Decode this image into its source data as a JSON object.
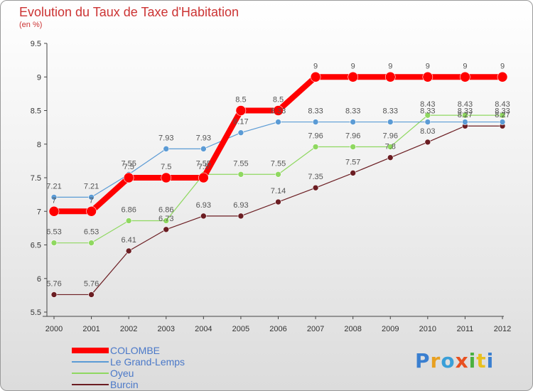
{
  "header": {
    "title": "Evolution du Taux de Taxe d'Habitation",
    "subtitle": "(en %)"
  },
  "logo": {
    "letters": [
      "P",
      "r",
      "o",
      "x",
      "i",
      "t",
      "i"
    ],
    "colors": [
      "#3a7fd0",
      "#e8a020",
      "#3a9fd8",
      "#e85020",
      "#4ab040",
      "#e8c020",
      "#3a7fd0"
    ]
  },
  "chart_data": {
    "type": "line",
    "x": [
      "2000",
      "2001",
      "2002",
      "2003",
      "2004",
      "2005",
      "2006",
      "2007",
      "2008",
      "2009",
      "2010",
      "2011",
      "2012"
    ],
    "ylim": [
      5.5,
      9.5
    ],
    "yticks": [
      "5.5",
      "6",
      "6.5",
      "7",
      "7.5",
      "8",
      "8.5",
      "9",
      "9.5"
    ],
    "grid": false,
    "legend_position": "bottom-left",
    "series": [
      {
        "name": "Burcin",
        "color": "#6b1d22",
        "width": 1.2,
        "marker": 4,
        "values": [
          5.76,
          5.76,
          6.41,
          6.73,
          6.93,
          6.93,
          7.14,
          7.35,
          7.57,
          7.8,
          8.03,
          8.27,
          8.27
        ],
        "labels": [
          "5.76",
          "5.76",
          "6.41",
          "6.73",
          "6.93",
          "6.93",
          "7.14",
          "7.35",
          "7.57",
          "7.8",
          "8.03",
          "8.27",
          "8.27"
        ]
      },
      {
        "name": "Oyeu",
        "color": "#8fd860",
        "width": 1.2,
        "marker": 4,
        "values": [
          6.53,
          6.53,
          6.86,
          6.86,
          7.55,
          7.55,
          7.55,
          7.96,
          7.96,
          7.96,
          8.43,
          8.43,
          8.43
        ],
        "labels": [
          "6.53",
          "6.53",
          "6.86",
          "6.86",
          "7.55",
          "7.55",
          "7.55",
          "7.96",
          "7.96",
          "7.96",
          "8.43",
          "8.43",
          "8.43"
        ]
      },
      {
        "name": "Le Grand-Lemps",
        "color": "#5b9bd5",
        "width": 1.2,
        "marker": 4,
        "values": [
          7.21,
          7.21,
          7.55,
          7.93,
          7.93,
          8.17,
          8.33,
          8.33,
          8.33,
          8.33,
          8.33,
          8.33,
          8.33
        ],
        "labels": [
          "7.21",
          "7.21",
          "7.55",
          "7.93",
          "7.93",
          "8.17",
          "8.33",
          "8.33",
          "8.33",
          "8.33",
          "8.33",
          "8.33",
          "8.33"
        ]
      },
      {
        "name": "COLOMBE",
        "color": "#ff0000",
        "width": 8,
        "marker": 7,
        "values": [
          7,
          7,
          7.5,
          7.5,
          7.5,
          8.5,
          8.5,
          9,
          9,
          9,
          9,
          9,
          9
        ],
        "labels": [
          "7",
          "7",
          "7.5",
          "7.5",
          "7.5",
          "8.5",
          "8.5",
          "9",
          "9",
          "9",
          "9",
          "9",
          "9"
        ]
      }
    ]
  },
  "legend": {
    "items": [
      {
        "label": "COLOMBE",
        "color": "#ff0000",
        "thickness": 8
      },
      {
        "label": "Le Grand-Lemps",
        "color": "#5b9bd5",
        "thickness": 2
      },
      {
        "label": "Oyeu",
        "color": "#8fd860",
        "thickness": 2
      },
      {
        "label": "Burcin",
        "color": "#6b1d22",
        "thickness": 2
      }
    ]
  }
}
